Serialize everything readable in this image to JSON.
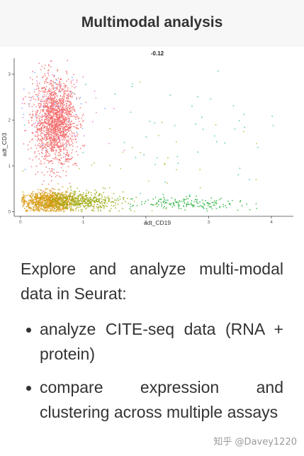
{
  "header": {
    "title": "Multimodal analysis"
  },
  "chart_data": {
    "type": "scatter",
    "title": "-0.12",
    "xlabel": "adt_CD19",
    "ylabel": "adt_CD3",
    "xlim": [
      -0.1,
      4.35
    ],
    "ylim": [
      -0.1,
      3.35
    ],
    "x_ticks": [
      "0",
      "1",
      "2",
      "3",
      "4"
    ],
    "y_ticks": [
      "0",
      "1",
      "2",
      "3"
    ],
    "grid": false,
    "legend": "none",
    "clusters": [
      {
        "color": "#f46d6d",
        "n": 1700,
        "center": [
          0.55,
          1.95
        ],
        "spread": [
          0.17,
          0.45
        ]
      },
      {
        "color": "#d89a12",
        "n": 900,
        "center": [
          0.45,
          0.22
        ],
        "spread": [
          0.22,
          0.11
        ]
      },
      {
        "color": "#9bab12",
        "n": 450,
        "center": [
          1.0,
          0.24
        ],
        "spread": [
          0.28,
          0.1
        ]
      },
      {
        "color": "#29b33c",
        "n": 170,
        "center": [
          2.6,
          0.18
        ],
        "spread": [
          0.45,
          0.07
        ]
      },
      {
        "color": "#3cc6b0",
        "n": 50,
        "center": [
          2.5,
          1.6
        ],
        "spread": [
          0.9,
          0.8
        ]
      },
      {
        "color": "#e777e0",
        "n": 40,
        "center": [
          0.7,
          2.2
        ],
        "spread": [
          0.4,
          0.6
        ]
      },
      {
        "color": "#73a5f7",
        "n": 40,
        "center": [
          0.6,
          2.3
        ],
        "spread": [
          0.4,
          0.5
        ]
      },
      {
        "color": "#b8b830",
        "n": 40,
        "center": [
          1.8,
          1.0
        ],
        "spread": [
          1.0,
          0.7
        ]
      }
    ]
  },
  "description": "Explore and analyze multi-modal data in Seurat:",
  "bullets": [
    "analyze CITE-seq data (RNA + protein)",
    "compare expression and clustering across multiple assays"
  ],
  "watermark": "知乎 @Davey1220"
}
